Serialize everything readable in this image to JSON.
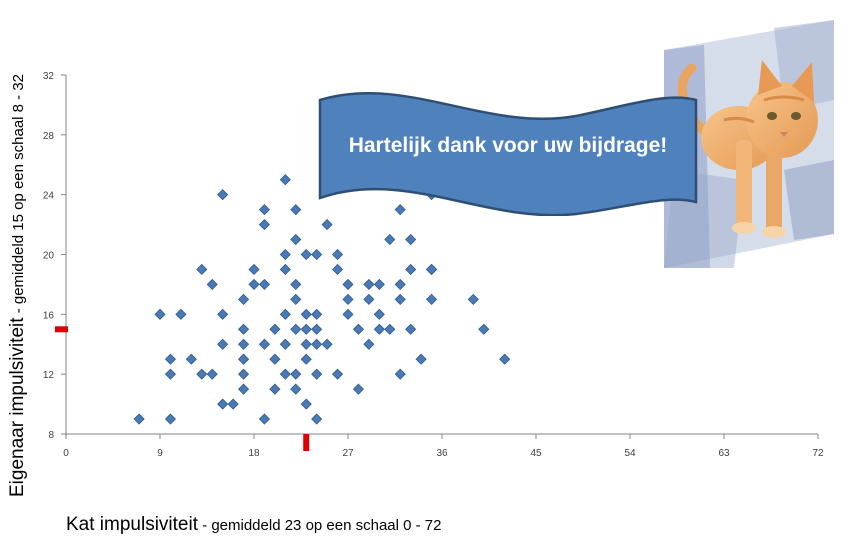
{
  "colors": {
    "marker": "#4a79b6",
    "marker_stroke": "#2f5d8e",
    "reference": "#e00000",
    "banner_fill": "#4f81bd",
    "banner_stroke": "#2e4f74"
  },
  "banner": {
    "text": "Hartelijk dank voor uw bijdrage!"
  },
  "photo": {
    "icon": "orange-cat-photo"
  },
  "axis_titles": {
    "x_main": "Kat impulsiviteit",
    "x_sub": " - gemiddeld 23 op een schaal 0 - 72",
    "y_main": "Eigenaar impulsiviteit",
    "y_sub": " - gemiddeld 15 op een schaal 8 - 32"
  },
  "chart_data": {
    "type": "scatter",
    "xlim": [
      0,
      72
    ],
    "ylim": [
      8,
      32
    ],
    "xticks": [
      0,
      9,
      18,
      27,
      36,
      45,
      54,
      63,
      72
    ],
    "yticks": [
      8,
      12,
      16,
      20,
      24,
      28,
      32
    ],
    "grid": false,
    "reference_marks": {
      "x_mean": 23,
      "y_mean": 15
    },
    "points": [
      [
        7,
        9
      ],
      [
        9,
        16
      ],
      [
        10,
        13
      ],
      [
        10,
        12
      ],
      [
        10,
        9
      ],
      [
        11,
        16
      ],
      [
        12,
        13
      ],
      [
        13,
        19
      ],
      [
        13,
        12
      ],
      [
        14,
        18
      ],
      [
        14,
        12
      ],
      [
        15,
        24
      ],
      [
        15,
        16
      ],
      [
        15,
        14
      ],
      [
        15,
        10
      ],
      [
        16,
        10
      ],
      [
        17,
        17
      ],
      [
        17,
        15
      ],
      [
        17,
        14
      ],
      [
        17,
        13
      ],
      [
        17,
        13
      ],
      [
        17,
        12
      ],
      [
        17,
        11
      ],
      [
        18,
        19
      ],
      [
        18,
        18
      ],
      [
        19,
        23
      ],
      [
        19,
        22
      ],
      [
        19,
        18
      ],
      [
        19,
        14
      ],
      [
        19,
        9
      ],
      [
        20,
        15
      ],
      [
        20,
        13
      ],
      [
        20,
        11
      ],
      [
        21,
        25
      ],
      [
        21,
        20
      ],
      [
        21,
        19
      ],
      [
        21,
        16
      ],
      [
        21,
        14
      ],
      [
        21,
        12
      ],
      [
        22,
        23
      ],
      [
        22,
        21
      ],
      [
        22,
        18
      ],
      [
        22,
        17
      ],
      [
        22,
        15
      ],
      [
        22,
        12
      ],
      [
        22,
        11
      ],
      [
        23,
        20
      ],
      [
        23,
        16
      ],
      [
        23,
        15
      ],
      [
        23,
        14
      ],
      [
        23,
        13
      ],
      [
        23,
        10
      ],
      [
        24,
        20
      ],
      [
        24,
        16
      ],
      [
        24,
        15
      ],
      [
        24,
        14
      ],
      [
        24,
        12
      ],
      [
        24,
        9
      ],
      [
        25,
        22
      ],
      [
        25,
        14
      ],
      [
        26,
        20
      ],
      [
        26,
        19
      ],
      [
        26,
        12
      ],
      [
        27,
        18
      ],
      [
        27,
        17
      ],
      [
        27,
        16
      ],
      [
        28,
        15
      ],
      [
        28,
        11
      ],
      [
        29,
        18
      ],
      [
        29,
        17
      ],
      [
        29,
        14
      ],
      [
        30,
        18
      ],
      [
        30,
        16
      ],
      [
        30,
        15
      ],
      [
        31,
        21
      ],
      [
        31,
        15
      ],
      [
        32,
        23
      ],
      [
        32,
        18
      ],
      [
        32,
        17
      ],
      [
        32,
        12
      ],
      [
        33,
        21
      ],
      [
        33,
        19
      ],
      [
        33,
        15
      ],
      [
        34,
        13
      ],
      [
        35,
        24
      ],
      [
        35,
        19
      ],
      [
        35,
        19
      ],
      [
        35,
        17
      ],
      [
        39,
        17
      ],
      [
        40,
        15
      ],
      [
        42,
        13
      ]
    ]
  }
}
